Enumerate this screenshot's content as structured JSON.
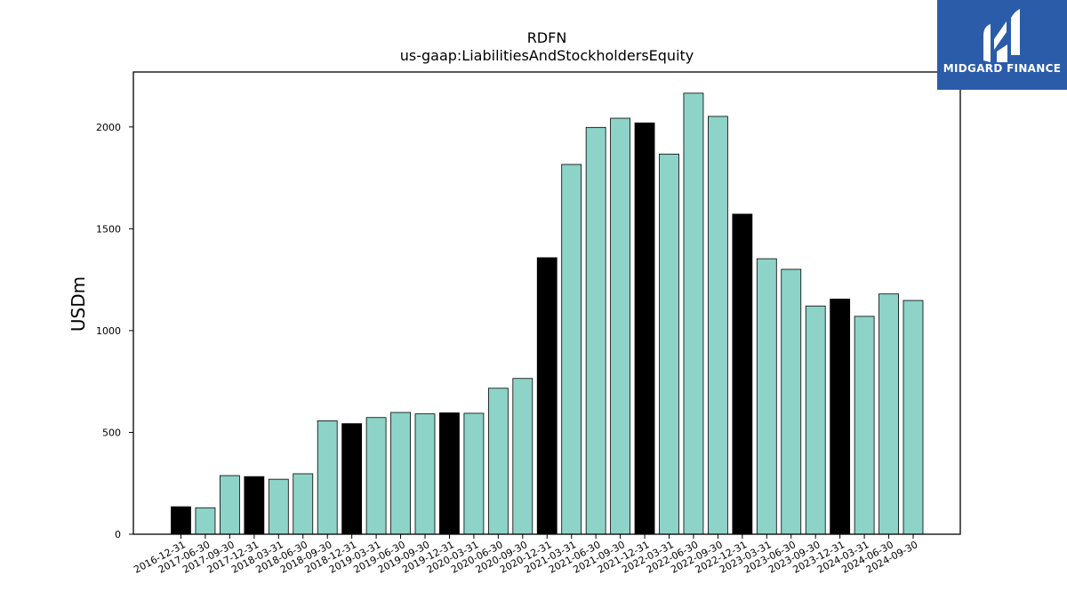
{
  "chart_data": {
    "type": "bar",
    "title": "RDFN",
    "subtitle": "us-gaap:LiabilitiesAndStockholdersEquity",
    "ylabel": "USDm",
    "xlabel": "",
    "ylim": [
      0,
      2270
    ],
    "yticks": [
      0,
      500,
      1000,
      1500,
      2000
    ],
    "grid": false,
    "colors": {
      "quarter": "#8dd3c7",
      "year_end": "#000000",
      "edge": "#000000"
    },
    "categories": [
      "2016-12-31",
      "2017-06-30",
      "2017-09-30",
      "2017-12-31",
      "2018-03-31",
      "2018-06-30",
      "2018-09-30",
      "2018-12-31",
      "2019-03-31",
      "2019-06-30",
      "2019-09-30",
      "2019-12-31",
      "2020-03-31",
      "2020-06-30",
      "2020-09-30",
      "2020-12-31",
      "2021-03-31",
      "2021-06-30",
      "2021-09-30",
      "2021-12-31",
      "2022-03-31",
      "2022-06-30",
      "2022-09-30",
      "2022-12-31",
      "2023-03-31",
      "2023-06-30",
      "2023-09-30",
      "2023-12-31",
      "2024-03-31",
      "2024-06-30",
      "2024-09-30"
    ],
    "values": [
      135,
      130,
      288,
      283,
      270,
      297,
      557,
      543,
      573,
      598,
      591,
      596,
      594,
      717,
      765,
      1358,
      1816,
      1998,
      2043,
      2020,
      1867,
      2166,
      2052,
      1572,
      1353,
      1301,
      1121,
      1155,
      1070,
      1180,
      1148
    ],
    "year_end": [
      true,
      false,
      false,
      true,
      false,
      false,
      false,
      true,
      false,
      false,
      false,
      true,
      false,
      false,
      false,
      true,
      false,
      false,
      false,
      true,
      false,
      false,
      false,
      true,
      false,
      false,
      false,
      true,
      false,
      false,
      false
    ]
  },
  "logo": {
    "text": "MIDGARD FINANCE",
    "background": "#2a5caa"
  }
}
